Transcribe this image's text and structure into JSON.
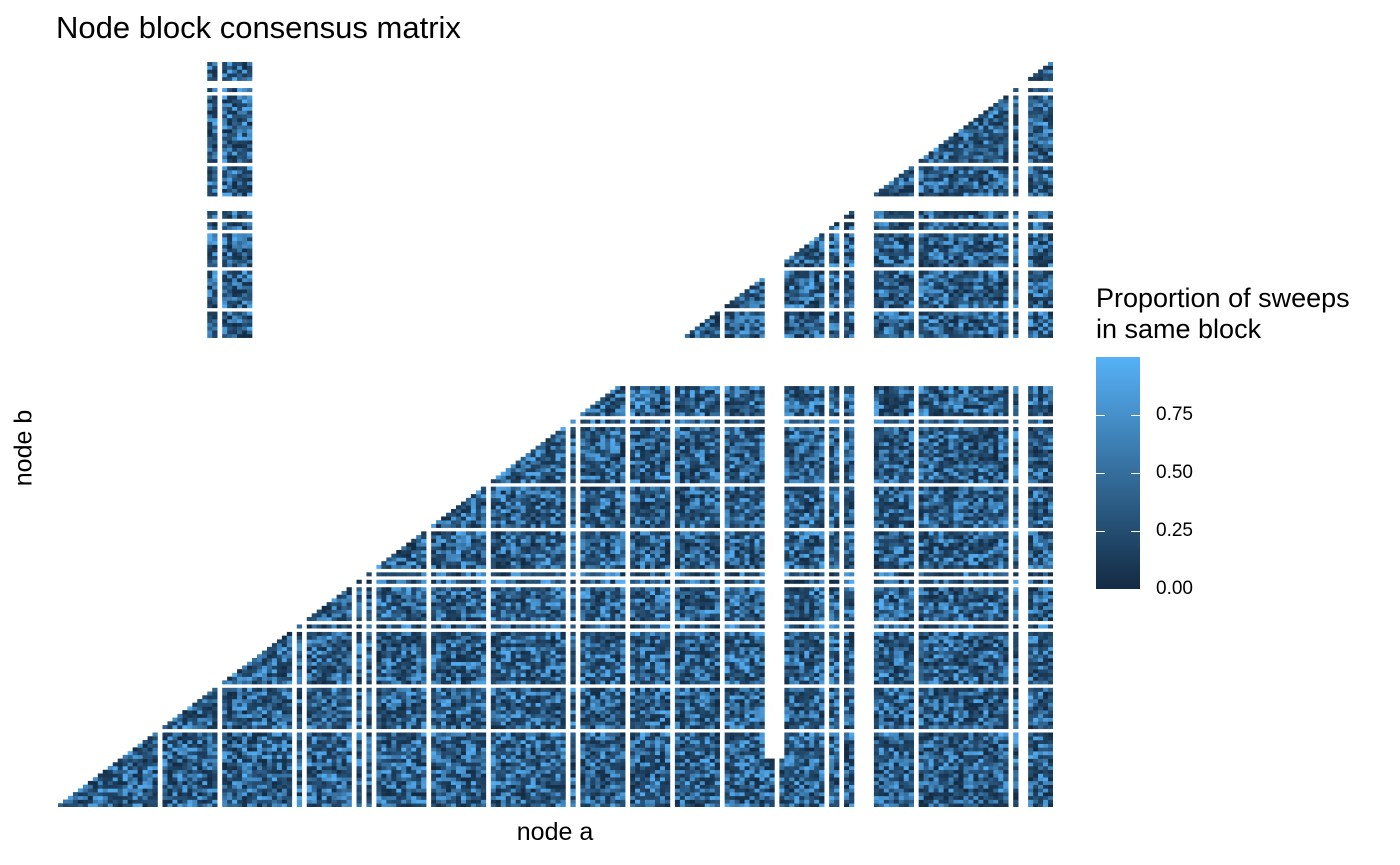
{
  "title": "Node block consensus matrix",
  "chart_data": {
    "type": "heatmap",
    "title": "Node block consensus matrix",
    "xlabel": "node a",
    "ylabel": "node b",
    "n_nodes": 200,
    "shape": "upper-triangular",
    "special_column_nodes": [
      30,
      39
    ],
    "empty_column_nodes": [
      142,
      146
    ],
    "low_variance_block_rows": [
      113,
      126
    ],
    "color_scale": {
      "title": "Proportion of sweeps in same block",
      "title_lines": [
        "Proportion of sweeps",
        "in same block"
      ],
      "low": "#132b43",
      "high": "#56b1f7",
      "range": [
        0,
        1
      ],
      "ticks": [
        0.0,
        0.25,
        0.5,
        0.75
      ],
      "tick_labels": [
        "0.00",
        "0.25",
        "0.50",
        "0.75"
      ]
    },
    "legend_position": "right",
    "grid": false
  }
}
